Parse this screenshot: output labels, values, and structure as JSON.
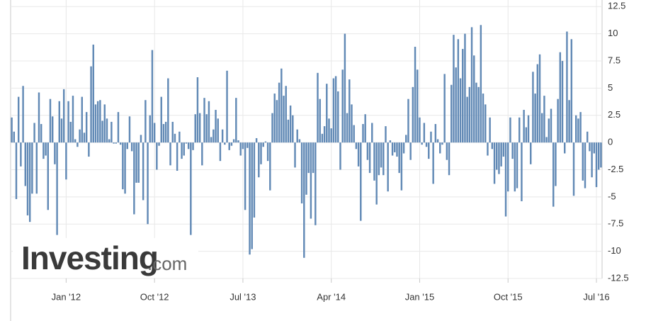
{
  "chart_data": {
    "type": "bar",
    "watermark": [
      "Investing",
      ".com"
    ],
    "color": "#6189b5",
    "grid": true,
    "ylim": [
      -12.5,
      13.1
    ],
    "yticks": [
      12.5,
      10,
      7.5,
      5,
      2.5,
      0,
      -2.5,
      -5,
      -7.5,
      -10,
      -12.5
    ],
    "categories": [
      null,
      null,
      null,
      null,
      null,
      null,
      null,
      null,
      null,
      null,
      null,
      null,
      null,
      null,
      null,
      null,
      null,
      null,
      null,
      null,
      null,
      null,
      null,
      null,
      "Jan '12",
      null,
      null,
      null,
      null,
      null,
      null,
      null,
      null,
      null,
      null,
      null,
      null,
      null,
      null,
      null,
      null,
      null,
      null,
      null,
      null,
      null,
      null,
      null,
      null,
      null,
      null,
      null,
      null,
      null,
      null,
      null,
      null,
      null,
      null,
      null,
      null,
      null,
      null,
      "Oct '12",
      null,
      null,
      null,
      null,
      null,
      null,
      null,
      null,
      null,
      null,
      null,
      null,
      null,
      null,
      null,
      null,
      null,
      null,
      null,
      null,
      null,
      null,
      null,
      null,
      null,
      null,
      null,
      null,
      null,
      null,
      null,
      null,
      null,
      null,
      null,
      null,
      null,
      null,
      "Jul '13",
      null,
      null,
      null,
      null,
      null,
      null,
      null,
      null,
      null,
      null,
      null,
      null,
      null,
      null,
      null,
      null,
      null,
      null,
      null,
      null,
      null,
      null,
      null,
      null,
      null,
      null,
      null,
      null,
      null,
      null,
      null,
      null,
      null,
      null,
      null,
      null,
      null,
      null,
      "Apr '14",
      null,
      null,
      null,
      null,
      null,
      null,
      null,
      null,
      null,
      null,
      null,
      null,
      null,
      null,
      null,
      null,
      null,
      null,
      null,
      null,
      null,
      null,
      null,
      null,
      null,
      null,
      null,
      null,
      null,
      null,
      null,
      null,
      null,
      null,
      null,
      null,
      null,
      null,
      "Jan '15",
      null,
      null,
      null,
      null,
      null,
      null,
      null,
      null,
      null,
      null,
      null,
      null,
      null,
      null,
      null,
      null,
      null,
      null,
      null,
      null,
      null,
      null,
      null,
      null,
      null,
      null,
      null,
      null,
      null,
      null,
      null,
      null,
      null,
      null,
      null,
      null,
      null,
      null,
      "Oct '15",
      null,
      null,
      null,
      null,
      null,
      null,
      null,
      null,
      null,
      null,
      null,
      null,
      null,
      null,
      null,
      null,
      null,
      null,
      null,
      null,
      null,
      null,
      null,
      null,
      null,
      null,
      null,
      null,
      null,
      null,
      null,
      null,
      null,
      null,
      null,
      null,
      null,
      null,
      "Jul '16",
      null,
      null
    ],
    "values": [
      2.3,
      1.0,
      -5.2,
      4.2,
      -2.2,
      5.2,
      -4.0,
      -6.7,
      -7.3,
      -4.7,
      1.8,
      -4.7,
      4.6,
      1.7,
      -1.5,
      -1.2,
      -6.2,
      4.0,
      2.4,
      -2.0,
      -8.5,
      3.8,
      2.2,
      4.9,
      -3.4,
      3.8,
      1.9,
      4.3,
      0.3,
      -0.4,
      1.2,
      4.2,
      0.9,
      2.8,
      -1.3,
      7.0,
      9.0,
      3.5,
      3.8,
      3.9,
      2.0,
      3.5,
      2.2,
      0.3,
      1.9,
      -0.1,
      -0.1,
      2.8,
      -0.2,
      -4.3,
      -4.7,
      -0.6,
      2.4,
      -0.8,
      -6.6,
      -3.7,
      -3.7,
      0.7,
      -5.3,
      3.9,
      -7.5,
      2.5,
      8.5,
      1.8,
      -2.5,
      -0.3,
      4.2,
      1.7,
      1.9,
      5.9,
      -2.1,
      1.9,
      0.8,
      -2.6,
      1.0,
      -1.5,
      -1.2,
      -0.1,
      -0.6,
      -8.5,
      -0.7,
      2.6,
      6.0,
      2.7,
      -2.1,
      4.1,
      2.6,
      3.8,
      0.5,
      1.2,
      3.0,
      2.2,
      -1.7,
      1.2,
      -0.2,
      6.6,
      -0.7,
      -0.3,
      0.3,
      4.1,
      0.2,
      -1.2,
      -0.6,
      -6.2,
      -0.5,
      -10.3,
      -9.8,
      -6.9,
      0.4,
      -3.2,
      -2.0,
      -0.4,
      0.1,
      -1.7,
      -4.4,
      2.7,
      4.5,
      3.9,
      5.5,
      6.8,
      4.3,
      5.2,
      2.1,
      3.4,
      2.5,
      -2.3,
      1.2,
      0.3,
      -5.6,
      -10.6,
      -4.8,
      -2.8,
      -7.0,
      -2.8,
      -7.6,
      6.4,
      4.0,
      0.8,
      1.5,
      5.4,
      2.2,
      1.3,
      5.9,
      6.1,
      4.7,
      -2.5,
      6.7,
      10.0,
      2.7,
      5.8,
      3.5,
      1.6,
      -0.6,
      -2.2,
      -7.2,
      1.7,
      2.6,
      -1.6,
      -2.8,
      1.8,
      -3.5,
      -5.7,
      -3.0,
      -2.3,
      -3.0,
      1.5,
      -4.5,
      0.2,
      -1.2,
      -0.9,
      -1.3,
      -2.8,
      -4.4,
      -1.0,
      0.7,
      4.0,
      -1.6,
      5.1,
      8.8,
      6.7,
      2.3,
      -0.2,
      1.8,
      -0.4,
      -1.5,
      1.0,
      -3.8,
      1.7,
      0.3,
      -1.0,
      -0.2,
      6.3,
      -1.6,
      -3.0,
      5.3,
      9.9,
      6.9,
      9.5,
      5.9,
      8.6,
      10.0,
      4.2,
      5.1,
      10.6,
      8.0,
      5.5,
      5.1,
      10.8,
      4.5,
      3.5,
      -1.2,
      2.3,
      -0.6,
      -3.8,
      -2.5,
      -2.9,
      -2.2,
      -1.3,
      -6.8,
      -4.5,
      2.3,
      -1.5,
      -4.5,
      -4.2,
      2.3,
      -5.4,
      3.0,
      1.4,
      2.5,
      -2.0,
      6.5,
      4.5,
      7.2,
      8.1,
      2.7,
      4.3,
      0.5,
      2.2,
      3.1,
      -5.9,
      -4.0,
      4.0,
      8.3,
      7.5,
      -1.0,
      10.2,
      3.9,
      9.5,
      -4.9,
      2.5,
      2.2,
      2.8,
      -3.5,
      -4.2,
      1.0,
      -0.8,
      -3.2,
      -1.0,
      -4.1,
      -2.5,
      -2.3
    ]
  }
}
